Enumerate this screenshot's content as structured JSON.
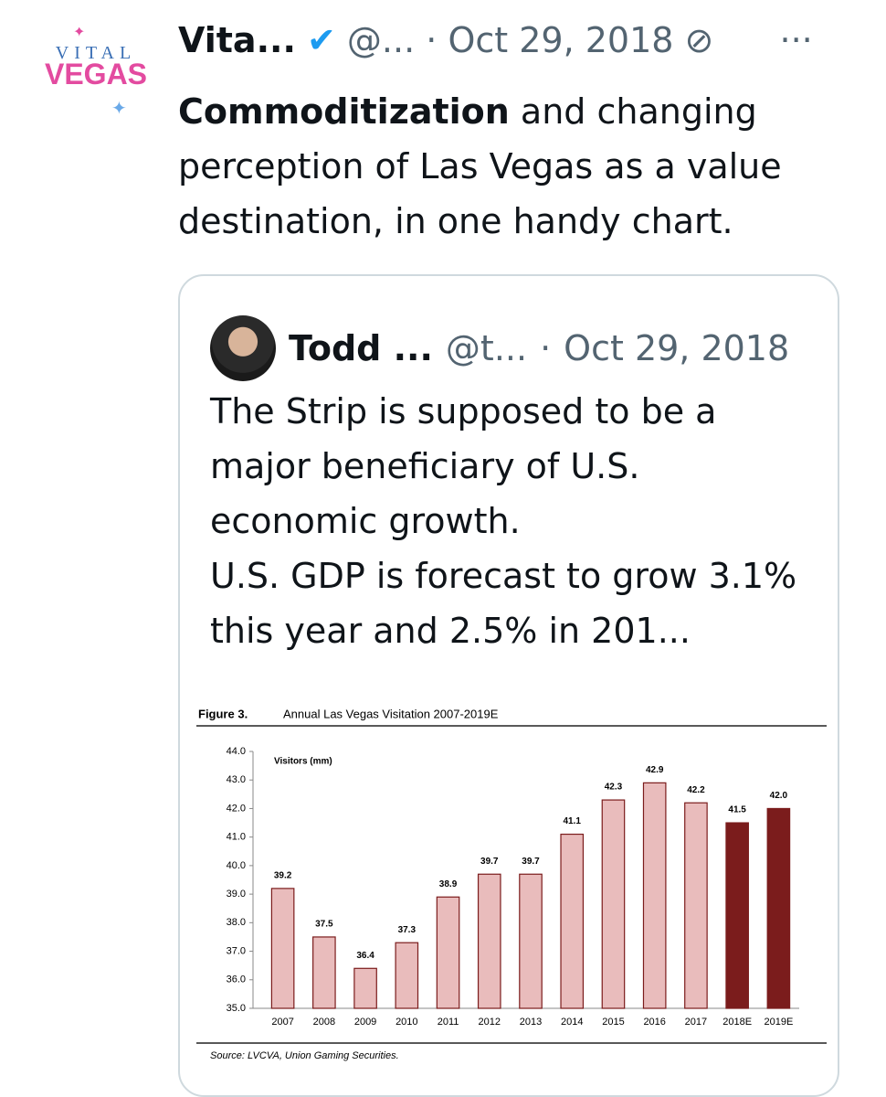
{
  "tweet": {
    "avatar": {
      "top": "VITAL",
      "bottom": "VEGAS"
    },
    "name": "Vita...",
    "handle": "@...",
    "date": "Oct 29, 2018",
    "text_bold": "Commoditization",
    "text": " and changing perception of Las Vegas as a value destination, in one handy chart."
  },
  "quote": {
    "name": "Todd ...",
    "handle": "@t...",
    "date": "Oct 29, 2018",
    "paragraphs": [
      "The Strip is supposed to be a major beneficiary of U.S. economic growth.",
      "U.S. GDP is forecast to grow 3.1% this year and 2.5% in 201..."
    ]
  },
  "chart_data": {
    "type": "bar",
    "figure_label": "Figure 3.",
    "title": "Annual Las Vegas Visitation 2007-2019E",
    "y_label": "Visitors (mm)",
    "categories": [
      "2007",
      "2008",
      "2009",
      "2010",
      "2011",
      "2012",
      "2013",
      "2014",
      "2015",
      "2016",
      "2017",
      "2018E",
      "2019E"
    ],
    "values": [
      39.2,
      37.5,
      36.4,
      37.3,
      38.9,
      39.7,
      39.7,
      41.1,
      42.3,
      42.9,
      42.2,
      41.5,
      42.0
    ],
    "value_labels": [
      "39.2",
      "37.5",
      "36.4",
      "37.3",
      "38.9",
      "39.7",
      "39.7",
      "41.1",
      "42.3",
      "42.9",
      "42.2",
      "41.5",
      "42.0"
    ],
    "colors": [
      "#e9bcbc",
      "#e9bcbc",
      "#e9bcbc",
      "#e9bcbc",
      "#e9bcbc",
      "#e9bcbc",
      "#e9bcbc",
      "#e9bcbc",
      "#e9bcbc",
      "#e9bcbc",
      "#e9bcbc",
      "#7b1c1c",
      "#7b1c1c"
    ],
    "edge_color": "#7b1c1c",
    "ylim": [
      35,
      44
    ],
    "yticks": [
      {
        "value": 35,
        "label": "35.0"
      },
      {
        "value": 36,
        "label": "36.0"
      },
      {
        "value": 37,
        "label": "37.0"
      },
      {
        "value": 38,
        "label": "38.0"
      },
      {
        "value": 39,
        "label": "39.0"
      },
      {
        "value": 40,
        "label": "40.0"
      },
      {
        "value": 41,
        "label": "41.0"
      },
      {
        "value": 42,
        "label": "42.0"
      },
      {
        "value": 43,
        "label": "43.0"
      },
      {
        "value": 44,
        "label": "44.0"
      }
    ],
    "source": "Source: LVCVA, Union Gaming Securities."
  }
}
